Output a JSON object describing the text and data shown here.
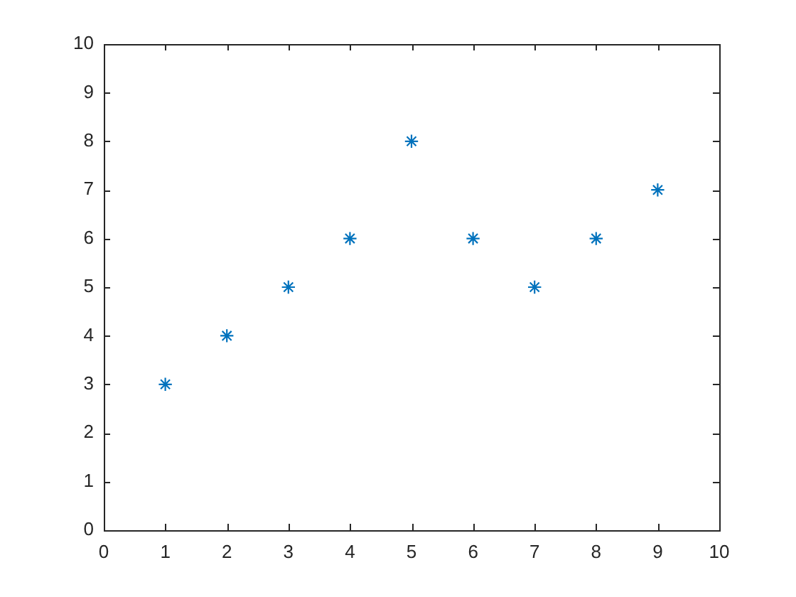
{
  "chart_data": {
    "type": "scatter",
    "x": [
      1,
      2,
      3,
      4,
      5,
      6,
      7,
      8,
      9
    ],
    "values": [
      3,
      4,
      5,
      6,
      8,
      6,
      5,
      6,
      7
    ],
    "color": "#0072bd",
    "marker": "cross",
    "xlim": [
      0,
      10
    ],
    "ylim": [
      0,
      10
    ],
    "xticks": [
      0,
      1,
      2,
      3,
      4,
      5,
      6,
      7,
      8,
      9,
      10
    ],
    "yticks": [
      0,
      1,
      2,
      3,
      4,
      5,
      6,
      7,
      8,
      9,
      10
    ]
  }
}
